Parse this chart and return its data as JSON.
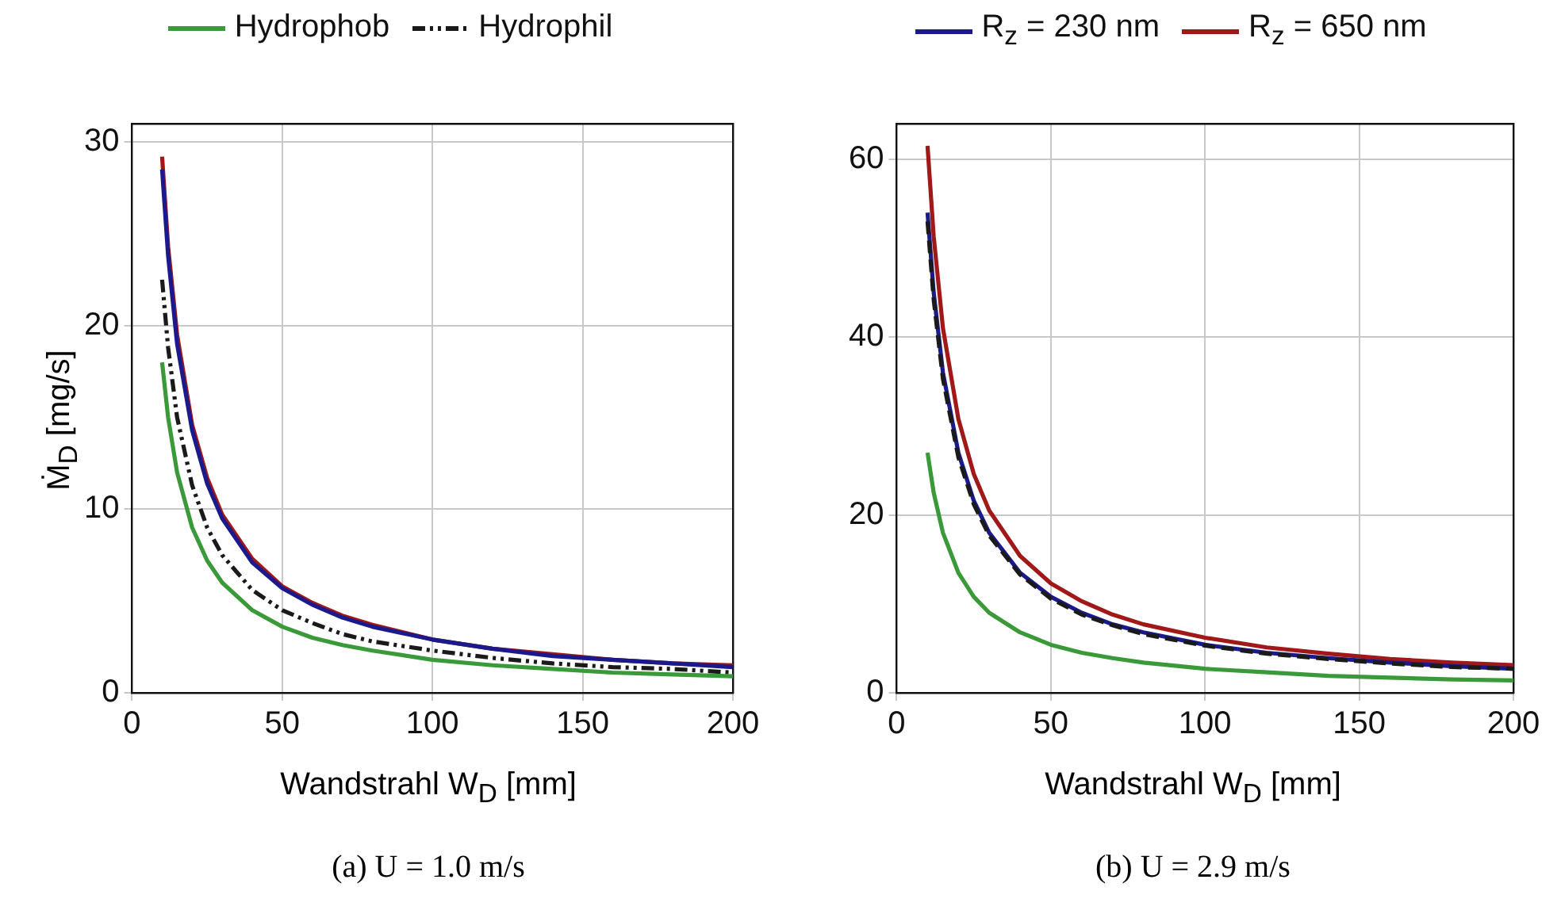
{
  "chart_data": [
    {
      "type": "line",
      "xlabel": "Wandstrahl W$_{D}$ [mm]",
      "ylabel": "Ṁ$_{D}$ [mg/s]",
      "annotations": [
        "(a) U = 1.0 m/s"
      ],
      "xlim": [
        0,
        200
      ],
      "ylim": [
        0,
        31
      ],
      "xticks": [
        0,
        50,
        100,
        150,
        200
      ],
      "yticks": [
        0,
        10,
        20,
        30
      ],
      "grid": true,
      "legend": "top",
      "marker": "none",
      "x": [
        10,
        12,
        15,
        20,
        25,
        30,
        40,
        50,
        60,
        70,
        80,
        100,
        120,
        140,
        160,
        180,
        200
      ],
      "series": [
        {
          "name": "Hydrophob",
          "color": "#3a9a3a",
          "line_style": "solid",
          "values": [
            18,
            15,
            12,
            9,
            7.2,
            6,
            4.5,
            3.6,
            3,
            2.6,
            2.3,
            1.8,
            1.5,
            1.3,
            1.1,
            1.0,
            0.9
          ]
        },
        {
          "name": "Hydrophil",
          "color": "#1a1a1a",
          "line_style": "dashdot",
          "values": [
            22.5,
            18.8,
            15,
            11.3,
            9,
            7.5,
            5.6,
            4.5,
            3.8,
            3.2,
            2.8,
            2.3,
            1.9,
            1.6,
            1.4,
            1.3,
            1.1
          ]
        },
        {
          "color": "#1a1a8c",
          "line_style": "solid",
          "values": [
            28.5,
            23.8,
            19,
            14.3,
            11.4,
            9.5,
            7.1,
            5.7,
            4.8,
            4.1,
            3.6,
            2.9,
            2.4,
            2.0,
            1.8,
            1.6,
            1.4
          ]
        },
        {
          "color": "#a01818",
          "line_style": "solid",
          "values": [
            29.2,
            24.3,
            19.5,
            14.6,
            11.7,
            9.7,
            7.3,
            5.8,
            4.9,
            4.2,
            3.7,
            2.9,
            2.4,
            2.1,
            1.8,
            1.6,
            1.5
          ]
        }
      ]
    },
    {
      "type": "line",
      "xlabel": "Wandstrahl W$_{D}$ [mm]",
      "annotations": [
        "(b) U = 2.9 m/s"
      ],
      "xlim": [
        0,
        200
      ],
      "ylim": [
        0,
        64
      ],
      "xticks": [
        0,
        50,
        100,
        150,
        200
      ],
      "yticks": [
        0,
        20,
        40,
        60
      ],
      "grid": true,
      "legend": "top",
      "marker": "none",
      "x": [
        10,
        12,
        15,
        20,
        25,
        30,
        40,
        50,
        60,
        70,
        80,
        100,
        120,
        140,
        160,
        180,
        200
      ],
      "series": [
        {
          "color": "#3a9a3a",
          "line_style": "solid",
          "values": [
            27,
            22.5,
            18,
            13.5,
            10.8,
            9,
            6.8,
            5.4,
            4.5,
            3.9,
            3.4,
            2.7,
            2.3,
            1.9,
            1.7,
            1.5,
            1.4
          ]
        },
        {
          "color": "#1a1a1a",
          "line_style": "dashed",
          "values": [
            53,
            44.2,
            35.3,
            26.5,
            21.2,
            17.7,
            13.3,
            10.6,
            8.8,
            7.6,
            6.6,
            5.3,
            4.4,
            3.8,
            3.3,
            2.9,
            2.7
          ]
        },
        {
          "name": "R$_{z}$ = 230 nm",
          "color": "#1a1a8c",
          "line_style": "solid",
          "values": [
            54,
            45,
            36,
            27,
            21.6,
            18,
            13.5,
            10.8,
            9,
            7.7,
            6.8,
            5.4,
            4.5,
            3.9,
            3.4,
            3.0,
            2.7
          ]
        },
        {
          "name": "R$_{z}$ = 650 nm",
          "color": "#a01818",
          "line_style": "solid",
          "values": [
            61.5,
            51.3,
            41,
            30.8,
            24.6,
            20.5,
            15.4,
            12.3,
            10.3,
            8.8,
            7.7,
            6.2,
            5.1,
            4.4,
            3.8,
            3.4,
            3.1
          ]
        }
      ]
    }
  ]
}
